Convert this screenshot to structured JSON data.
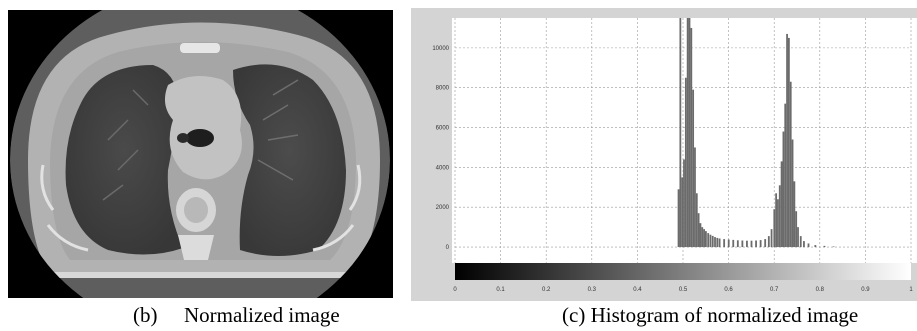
{
  "figure": {
    "panel_b": {
      "caption_label": "(b)",
      "caption_text": "Normalized image"
    },
    "panel_c": {
      "caption_label": "(c)",
      "caption_text": "Histogram of normalized image",
      "chart_data": {
        "type": "bar",
        "title": "",
        "xlabel": "",
        "ylabel": "",
        "xlim": [
          0,
          1
        ],
        "ylim": [
          -800,
          11500
        ],
        "grid": true,
        "y_ticks": [
          "0",
          "2000",
          "4000",
          "6000",
          "8000",
          "10000"
        ],
        "x_ticks": [
          "0",
          "0.1",
          "0.2",
          "0.3",
          "0.4",
          "0.5",
          "0.6",
          "0.7",
          "0.8",
          "0.9",
          "1"
        ],
        "colorbar": "grayscale gradient from 0 (black) to 1 (white) along x-axis",
        "bins": [
          {
            "x": 0.49,
            "count": 2900
          },
          {
            "x": 0.494,
            "count": 11500
          },
          {
            "x": 0.498,
            "count": 3500
          },
          {
            "x": 0.502,
            "count": 4400
          },
          {
            "x": 0.506,
            "count": 8500
          },
          {
            "x": 0.51,
            "count": 11500
          },
          {
            "x": 0.514,
            "count": 11500
          },
          {
            "x": 0.518,
            "count": 11000
          },
          {
            "x": 0.522,
            "count": 7900
          },
          {
            "x": 0.526,
            "count": 5000
          },
          {
            "x": 0.53,
            "count": 2700
          },
          {
            "x": 0.534,
            "count": 1700
          },
          {
            "x": 0.538,
            "count": 1200
          },
          {
            "x": 0.542,
            "count": 1000
          },
          {
            "x": 0.546,
            "count": 900
          },
          {
            "x": 0.55,
            "count": 800
          },
          {
            "x": 0.555,
            "count": 700
          },
          {
            "x": 0.56,
            "count": 620
          },
          {
            "x": 0.565,
            "count": 560
          },
          {
            "x": 0.57,
            "count": 500
          },
          {
            "x": 0.575,
            "count": 460
          },
          {
            "x": 0.58,
            "count": 430
          },
          {
            "x": 0.59,
            "count": 400
          },
          {
            "x": 0.6,
            "count": 380
          },
          {
            "x": 0.61,
            "count": 360
          },
          {
            "x": 0.62,
            "count": 340
          },
          {
            "x": 0.63,
            "count": 330
          },
          {
            "x": 0.64,
            "count": 320
          },
          {
            "x": 0.65,
            "count": 320
          },
          {
            "x": 0.66,
            "count": 330
          },
          {
            "x": 0.67,
            "count": 350
          },
          {
            "x": 0.68,
            "count": 400
          },
          {
            "x": 0.688,
            "count": 550
          },
          {
            "x": 0.694,
            "count": 900
          },
          {
            "x": 0.7,
            "count": 1900
          },
          {
            "x": 0.704,
            "count": 2700
          },
          {
            "x": 0.708,
            "count": 2400
          },
          {
            "x": 0.712,
            "count": 3100
          },
          {
            "x": 0.716,
            "count": 4300
          },
          {
            "x": 0.72,
            "count": 5800
          },
          {
            "x": 0.724,
            "count": 7200
          },
          {
            "x": 0.728,
            "count": 10700
          },
          {
            "x": 0.732,
            "count": 10500
          },
          {
            "x": 0.736,
            "count": 8300
          },
          {
            "x": 0.74,
            "count": 5400
          },
          {
            "x": 0.744,
            "count": 3300
          },
          {
            "x": 0.748,
            "count": 1800
          },
          {
            "x": 0.752,
            "count": 1000
          },
          {
            "x": 0.758,
            "count": 550
          },
          {
            "x": 0.765,
            "count": 300
          },
          {
            "x": 0.775,
            "count": 180
          },
          {
            "x": 0.79,
            "count": 100
          },
          {
            "x": 0.81,
            "count": 60
          },
          {
            "x": 0.83,
            "count": 30
          }
        ]
      }
    },
    "colors": {
      "plot_background": "#ffffff",
      "frame": "#cfcfcf",
      "bars": "#6b6b6b",
      "grid": "#9a9a9a"
    }
  }
}
